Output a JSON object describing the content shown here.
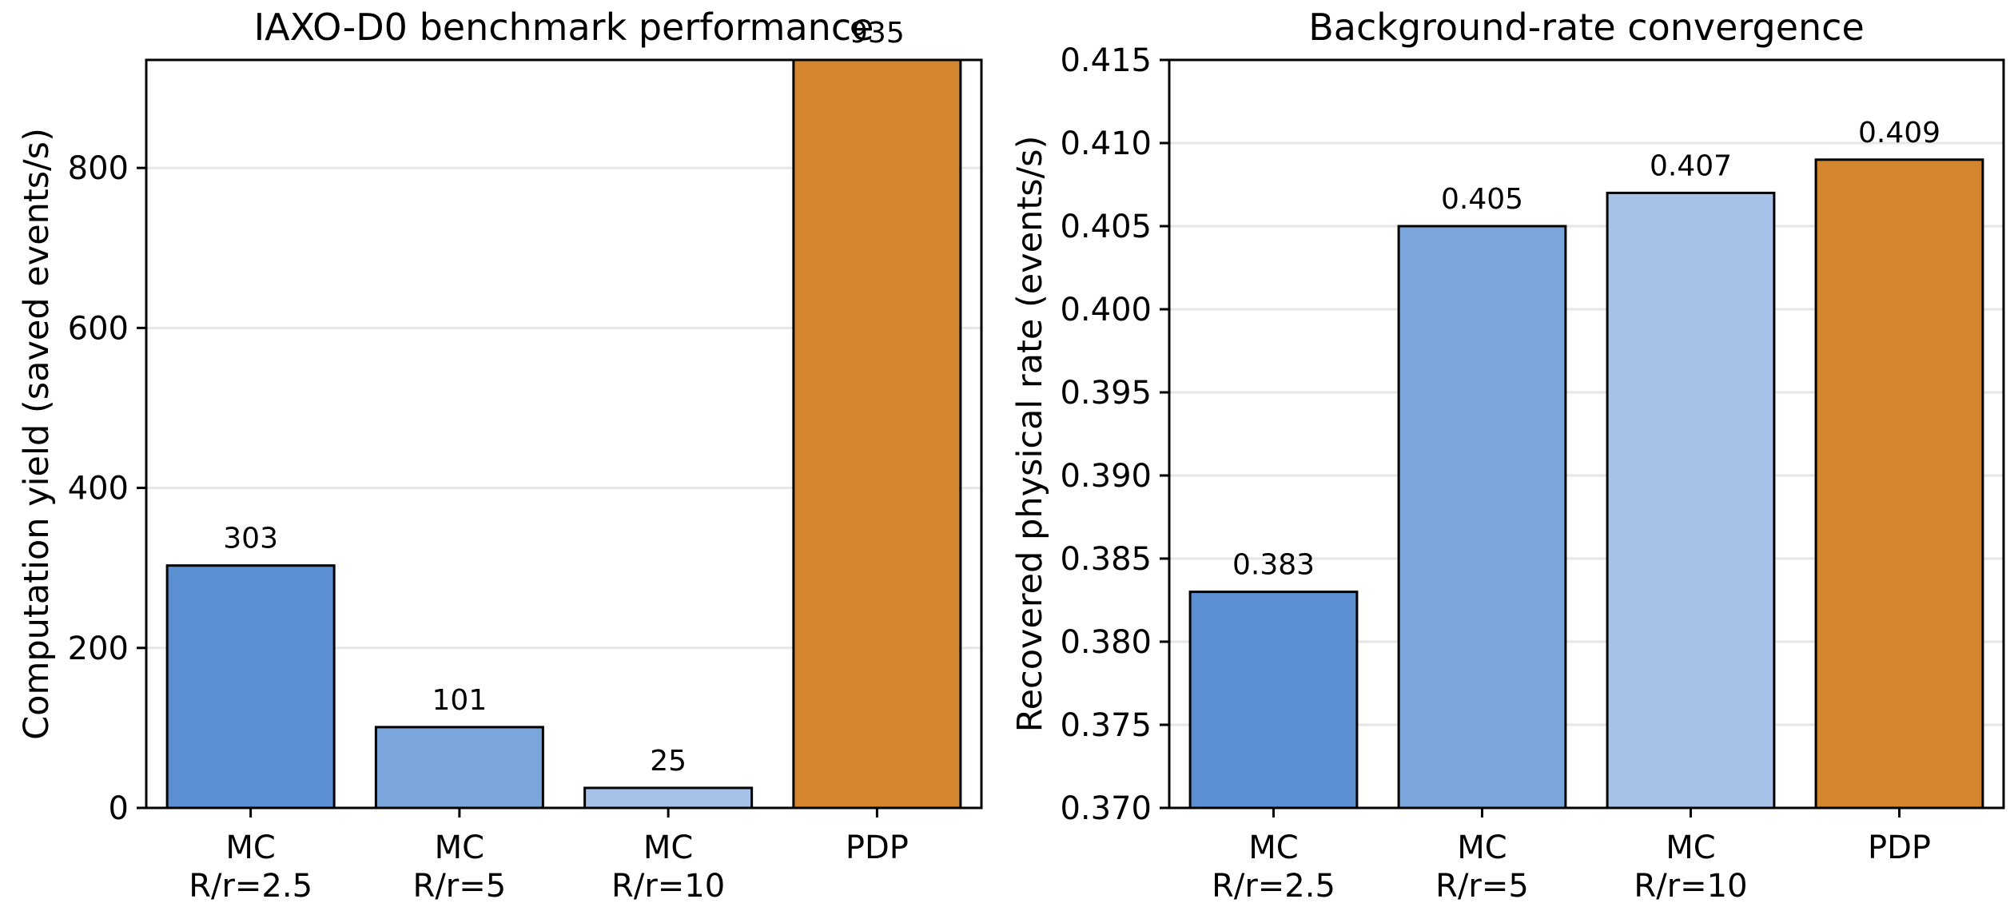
{
  "chart_data": [
    {
      "type": "bar",
      "title": "IAXO-D0 benchmark performance",
      "xlabel": "",
      "ylabel": "Computation yield (saved events/s)",
      "categories": [
        [
          "MC",
          "R/r=2.5"
        ],
        [
          "MC",
          "R/r=5"
        ],
        [
          "MC",
          "R/r=10"
        ],
        [
          "PDP"
        ]
      ],
      "values": [
        303,
        101,
        25,
        935
      ],
      "value_labels": [
        "303",
        "101",
        "25",
        "935"
      ],
      "bar_colors": [
        "#5b8fd1",
        "#7ba6db",
        "#a6c2e8",
        "#d4862f"
      ],
      "ylim": [
        0,
        935
      ],
      "yticks": [
        0,
        200,
        400,
        600,
        800
      ],
      "ytick_labels": [
        "0",
        "200",
        "400",
        "600",
        "800"
      ],
      "grid": "horizontal",
      "legend": "none"
    },
    {
      "type": "bar",
      "title": "Background-rate convergence",
      "xlabel": "",
      "ylabel": "Recovered physical rate (events/s)",
      "categories": [
        [
          "MC",
          "R/r=2.5"
        ],
        [
          "MC",
          "R/r=5"
        ],
        [
          "MC",
          "R/r=10"
        ],
        [
          "PDP"
        ]
      ],
      "values": [
        0.383,
        0.405,
        0.407,
        0.409
      ],
      "value_labels": [
        "0.383",
        "0.405",
        "0.407",
        "0.409"
      ],
      "bar_colors": [
        "#5b8fd1",
        "#7ba6db",
        "#a6c2e8",
        "#d4862f"
      ],
      "ylim": [
        0.37,
        0.415
      ],
      "yticks": [
        0.37,
        0.375,
        0.38,
        0.385,
        0.39,
        0.395,
        0.4,
        0.405,
        0.41,
        0.415
      ],
      "ytick_labels": [
        "0.370",
        "0.375",
        "0.380",
        "0.385",
        "0.390",
        "0.395",
        "0.400",
        "0.405",
        "0.410",
        "0.415"
      ],
      "grid": "horizontal",
      "legend": "none"
    }
  ]
}
